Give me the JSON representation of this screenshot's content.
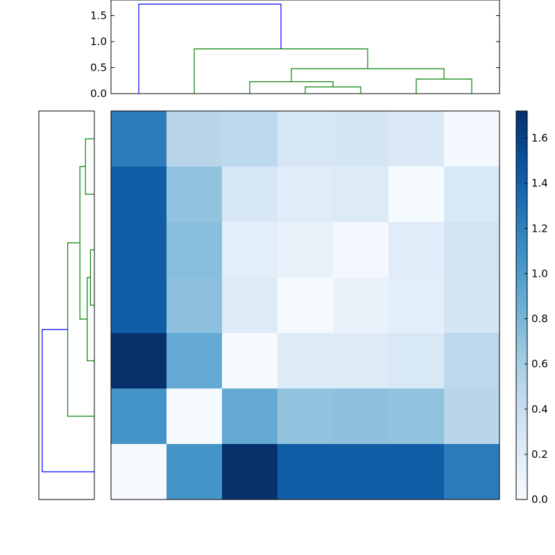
{
  "chart_data": [
    {
      "type": "dendrogram",
      "orientation": "top",
      "ylim": [
        0,
        1.8
      ],
      "yticks": [
        0.0,
        0.5,
        1.0,
        1.5
      ],
      "ytick_labels": [
        "0.0",
        "0.5",
        "1.0",
        "1.5"
      ],
      "links": [
        {
          "color": "#008000",
          "left_x": 5.5,
          "right_x": 6.5,
          "left_h": 0.0,
          "right_h": 0.0,
          "h": 0.28
        },
        {
          "color": "#008000",
          "left_x": 3.5,
          "right_x": 4.5,
          "left_h": 0.0,
          "right_h": 0.0,
          "h": 0.13
        },
        {
          "color": "#008000",
          "left_x": 2.5,
          "right_x": 4.0,
          "left_h": 0.0,
          "right_h": 0.13,
          "h": 0.23
        },
        {
          "color": "#008000",
          "left_x": 3.25,
          "right_x": 6.0,
          "left_h": 0.23,
          "right_h": 0.28,
          "h": 0.48
        },
        {
          "color": "#008000",
          "left_x": 1.5,
          "right_x": 4.625,
          "left_h": 0.0,
          "right_h": 0.48,
          "h": 0.86
        },
        {
          "color": "#0000ff",
          "left_x": 0.5,
          "right_x": 3.0625,
          "left_h": 0.0,
          "right_h": 0.86,
          "h": 1.72
        }
      ]
    },
    {
      "type": "dendrogram",
      "orientation": "left",
      "links": [
        {
          "color": "#008000",
          "a": 0.5,
          "b": 1.5,
          "ha": 0.0,
          "hb": 0.0,
          "h": 0.16
        },
        {
          "color": "#008000",
          "a": 2.5,
          "b": 3.5,
          "ha": 0.0,
          "hb": 0.0,
          "h": 0.07
        },
        {
          "color": "#008000",
          "a": 3.0,
          "b": 4.5,
          "ha": 0.07,
          "hb": 0.0,
          "h": 0.13
        },
        {
          "color": "#008000",
          "a": 1.0,
          "b": 3.75,
          "ha": 0.16,
          "hb": 0.13,
          "h": 0.26
        },
        {
          "color": "#008000",
          "a": 2.375,
          "b": 5.5,
          "ha": 0.26,
          "hb": 0.0,
          "h": 0.48
        },
        {
          "color": "#0000ff",
          "a": 3.9375,
          "b": 6.5,
          "ha": 0.48,
          "hb": 0.0,
          "h": 0.94
        }
      ]
    },
    {
      "type": "heatmap",
      "colormap": "Blues",
      "vmin": 0.0,
      "vmax": 1.72,
      "matrix": [
        [
          1.22,
          0.5,
          0.48,
          0.28,
          0.3,
          0.24,
          0.04
        ],
        [
          1.42,
          0.7,
          0.28,
          0.2,
          0.22,
          0.02,
          0.26
        ],
        [
          1.42,
          0.74,
          0.18,
          0.12,
          0.04,
          0.2,
          0.32
        ],
        [
          1.42,
          0.72,
          0.22,
          0.02,
          0.12,
          0.18,
          0.3
        ],
        [
          1.72,
          0.9,
          0.02,
          0.22,
          0.22,
          0.26,
          0.48
        ],
        [
          1.06,
          0.02,
          0.9,
          0.7,
          0.72,
          0.7,
          0.5
        ],
        [
          0.02,
          1.06,
          1.72,
          1.42,
          1.42,
          1.42,
          1.22
        ]
      ],
      "colorbar_ticks": [
        0.0,
        0.2,
        0.4,
        0.6,
        0.8,
        1.0,
        1.2,
        1.4,
        1.6
      ],
      "colorbar_tick_labels": [
        "0.0",
        "0.2",
        "0.4",
        "0.6",
        "0.8",
        "1.0",
        "1.2",
        "1.4",
        "1.6"
      ]
    }
  ]
}
